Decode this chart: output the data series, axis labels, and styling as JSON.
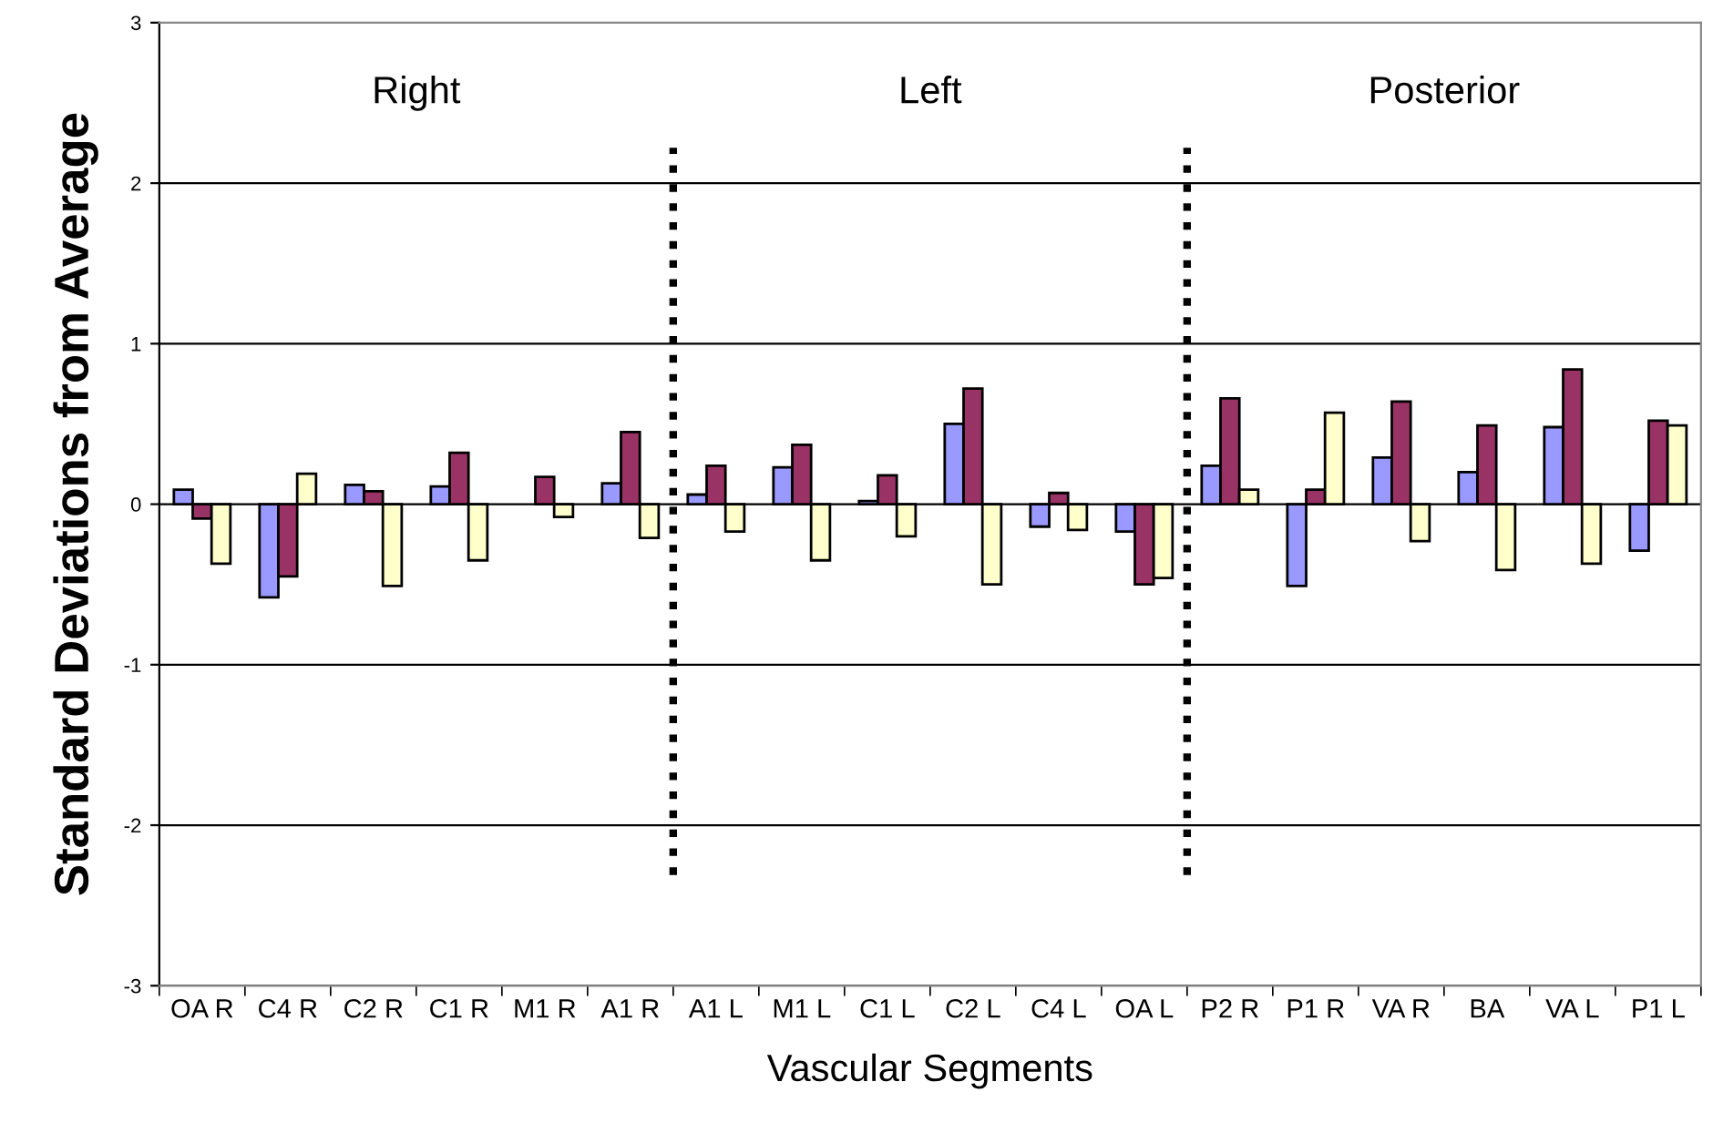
{
  "chart_data": {
    "type": "bar",
    "xlabel": "Vascular Segments",
    "ylabel": "Standard Deviations from Average",
    "categories": [
      "OA R",
      "C4 R",
      "C2 R",
      "C1 R",
      "M1 R",
      "A1 R",
      "A1 L",
      "M1 L",
      "C1 L",
      "C2 L",
      "C4 L",
      "OA L",
      "P2 R",
      "P1 R",
      "VA R",
      "BA",
      "VA L",
      "P1 L"
    ],
    "series": [
      {
        "color": "#9999ff",
        "values": [
          0.09,
          -0.58,
          0.12,
          0.11,
          null,
          0.13,
          0.06,
          0.23,
          0.02,
          0.5,
          -0.14,
          -0.17,
          0.24,
          -0.51,
          0.29,
          0.2,
          0.48,
          -0.29
        ]
      },
      {
        "color": "#993366",
        "values": [
          -0.09,
          -0.45,
          0.08,
          0.32,
          0.17,
          0.45,
          0.24,
          0.37,
          0.18,
          0.72,
          0.07,
          -0.5,
          0.66,
          0.09,
          0.64,
          0.49,
          0.84,
          0.52
        ]
      },
      {
        "color": "#ffffcc",
        "values": [
          -0.37,
          0.19,
          -0.51,
          -0.35,
          -0.08,
          -0.21,
          -0.17,
          -0.35,
          -0.2,
          -0.5,
          -0.16,
          -0.46,
          0.09,
          0.57,
          -0.23,
          -0.41,
          -0.37,
          0.49
        ]
      }
    ],
    "ylim": [
      -3,
      3
    ],
    "yticks": [
      -3,
      -2,
      -1,
      0,
      1,
      2,
      3
    ],
    "grid": "y",
    "annotations": [
      "Right",
      "Left",
      "Posterior"
    ]
  }
}
